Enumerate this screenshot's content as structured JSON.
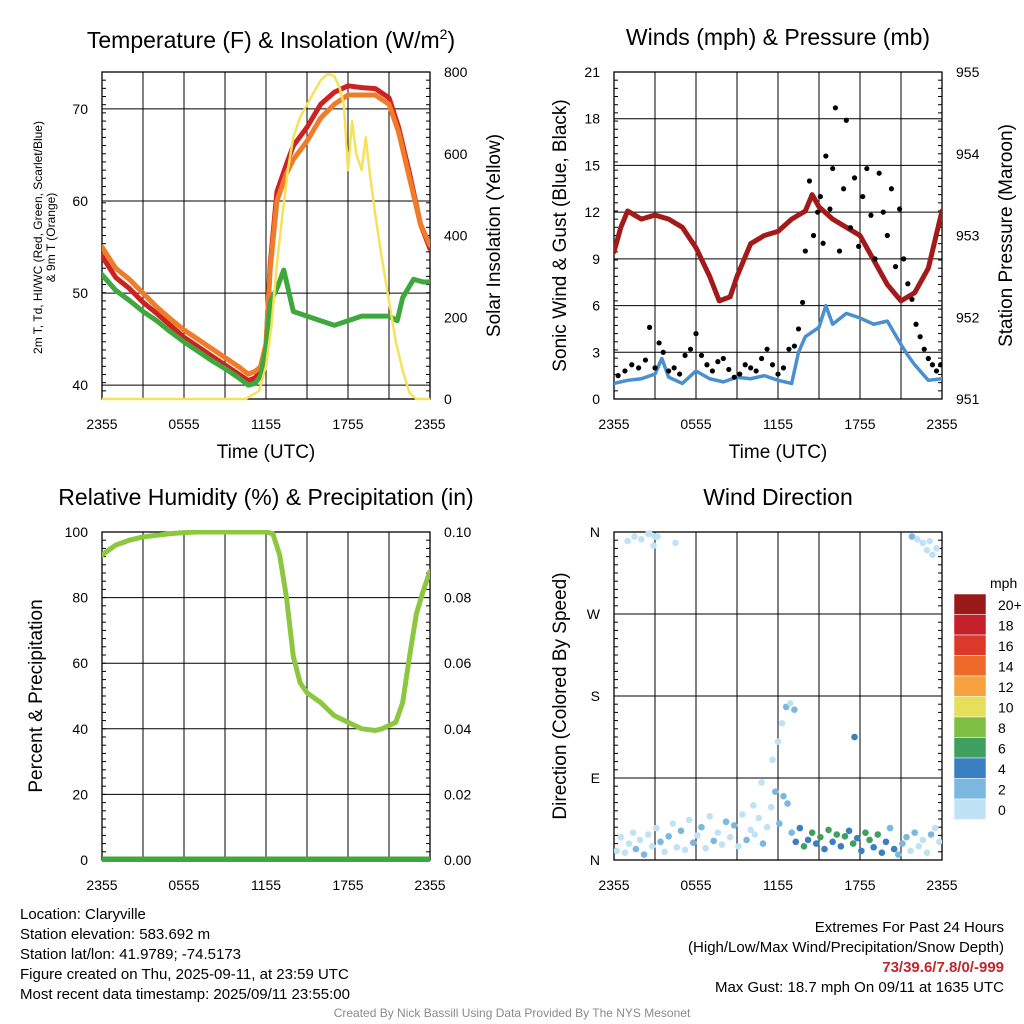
{
  "chart_data": [
    {
      "type": "line",
      "title": "Temperature (F) & Insolation (W/m²)",
      "xlabel": "Time (UTC)",
      "ylabel": "2m T, Td, HI/WC (Red, Green, Scarlet/Blue) & 9m T (Orange)",
      "ylabel_right": "Solar Insolation (Yellow)",
      "xticks": [
        "2355",
        "0555",
        "1155",
        "1755",
        "2355"
      ],
      "x_range": [
        0,
        24
      ],
      "ylim": [
        38.5,
        74
      ],
      "yticks": [
        40,
        50,
        60,
        70
      ],
      "ylim_right": [
        0,
        800
      ],
      "yticks_right": [
        0,
        200,
        400,
        600,
        800
      ],
      "grid": true,
      "series": [
        {
          "axis": "left",
          "color": "#cc2222",
          "x": [
            0,
            1,
            2,
            3,
            4,
            5,
            6,
            7,
            8,
            9,
            10,
            10.7,
            11.2,
            11.6,
            12,
            12.3,
            12.8,
            13.5,
            14,
            15,
            16,
            17,
            18,
            19,
            20,
            21,
            21.7,
            22.5,
            23.3,
            24
          ],
          "y": [
            54,
            51.7,
            50.5,
            49,
            47.8,
            46.5,
            45.2,
            44.2,
            43.2,
            42.2,
            41.2,
            40.5,
            40.8,
            41.5,
            44,
            53,
            61,
            64,
            66,
            68,
            70.5,
            71.8,
            72.5,
            72.3,
            72.2,
            71.2,
            68,
            63,
            57.5,
            54.8
          ]
        },
        {
          "axis": "left",
          "color": "#f07c2a",
          "x": [
            0,
            1,
            2,
            3,
            4,
            5,
            6,
            7,
            8,
            9,
            10,
            10.7,
            11.2,
            11.6,
            12,
            12.3,
            12.8,
            13.5,
            14,
            15,
            16,
            17,
            18,
            19,
            20,
            21,
            21.7,
            22.5,
            23.3,
            24
          ],
          "y": [
            55,
            52.7,
            51.5,
            50,
            48.5,
            47.2,
            46,
            45,
            44,
            43,
            42,
            41.2,
            41.5,
            42,
            44.5,
            52.5,
            60,
            63,
            64.5,
            66.5,
            69,
            70.5,
            71.5,
            71.5,
            71.5,
            70.5,
            67.5,
            62.5,
            57.5,
            55.2
          ]
        },
        {
          "axis": "left",
          "color": "#3ea83e",
          "x": [
            0,
            1,
            2,
            3,
            4,
            5,
            6,
            7,
            8,
            9,
            10,
            10.7,
            11.2,
            11.6,
            12,
            12.3,
            12.8,
            13.3,
            14,
            15,
            16,
            17,
            18,
            19,
            20,
            21,
            21.6,
            22,
            22.8,
            23.5,
            24
          ],
          "y": [
            52,
            50.3,
            49.2,
            48,
            47,
            45.8,
            44.7,
            43.7,
            42.7,
            41.8,
            40.8,
            40,
            40.2,
            41,
            44,
            49,
            50.5,
            52.5,
            48,
            47.5,
            47,
            46.5,
            47,
            47.5,
            47.5,
            47.5,
            47,
            49.5,
            51.5,
            51.2,
            51.2
          ]
        },
        {
          "axis": "right",
          "color": "#f5e25a",
          "x": [
            0,
            10.5,
            11.5,
            12,
            12.4,
            12.8,
            13.2,
            13.6,
            14,
            14.5,
            15,
            15.5,
            16,
            16.5,
            17,
            17.4,
            17.7,
            18,
            18.3,
            18.6,
            19,
            19.3,
            19.6,
            20,
            20.5,
            21,
            21.5,
            22,
            22.5,
            23,
            23.5,
            24
          ],
          "y": [
            0,
            0,
            20,
            80,
            180,
            330,
            450,
            560,
            640,
            690,
            720,
            750,
            780,
            795,
            790,
            760,
            720,
            560,
            680,
            600,
            560,
            640,
            550,
            450,
            340,
            240,
            140,
            70,
            15,
            0,
            0,
            0
          ]
        }
      ]
    },
    {
      "type": "line",
      "title": "Winds (mph) & Pressure (mb)",
      "xlabel": "Time (UTC)",
      "ylabel": "Sonic Wind & Gust (Blue, Black)",
      "ylabel_right": "Station Pressure (Maroon)",
      "xticks": [
        "2355",
        "0555",
        "1155",
        "1755",
        "2355"
      ],
      "x_range": [
        0,
        24
      ],
      "ylim": [
        0,
        21
      ],
      "yticks": [
        0,
        3,
        6,
        9,
        12,
        15,
        18,
        21
      ],
      "ylim_right": [
        951,
        955
      ],
      "yticks_right": [
        951,
        952,
        953,
        954,
        955
      ],
      "grid": true,
      "series": [
        {
          "axis": "right",
          "color": "#a31a1a",
          "x": [
            0,
            0.5,
            1,
            1.5,
            2,
            3,
            4,
            5,
            6,
            7,
            7.7,
            8.5,
            9,
            10,
            11,
            12,
            13,
            14,
            14.5,
            15,
            16,
            17,
            18,
            19,
            20,
            21,
            22,
            23,
            24
          ],
          "y": [
            952.8,
            953.1,
            953.3,
            953.25,
            953.2,
            953.25,
            953.2,
            953.1,
            952.85,
            952.5,
            952.2,
            952.25,
            952.5,
            952.9,
            953.0,
            953.05,
            953.2,
            953.3,
            953.5,
            953.35,
            953.2,
            953.1,
            953.0,
            952.7,
            952.4,
            952.2,
            952.3,
            952.6,
            953.3
          ]
        },
        {
          "axis": "left",
          "color": "#4a8fd0",
          "x": [
            0,
            1,
            2,
            3,
            3.5,
            4,
            5,
            6,
            7,
            8,
            9,
            10,
            11,
            12,
            13,
            13.5,
            14,
            15,
            15.5,
            16,
            17,
            18,
            19,
            20,
            21,
            21.5,
            22,
            23,
            24
          ],
          "y": [
            1.0,
            1.2,
            1.3,
            1.6,
            2.6,
            1.4,
            1.0,
            1.8,
            1.3,
            1.1,
            1.4,
            1.3,
            1.5,
            1.2,
            1.0,
            3.0,
            4.0,
            4.6,
            6.0,
            4.8,
            5.5,
            5.2,
            4.8,
            5.0,
            3.5,
            2.8,
            2.2,
            1.2,
            1.3
          ]
        },
        {
          "axis": "left",
          "color": "#000000",
          "kind": "scatter",
          "x": [
            0.3,
            0.8,
            1.3,
            1.8,
            2.3,
            2.6,
            3.0,
            3.3,
            3.6,
            4.0,
            4.4,
            4.8,
            5.2,
            5.6,
            6.0,
            6.4,
            6.8,
            7.2,
            7.6,
            8.0,
            8.4,
            8.8,
            9.2,
            9.6,
            10.0,
            10.4,
            10.8,
            11.2,
            11.6,
            12.0,
            12.4,
            12.8,
            13.2,
            13.5,
            13.8,
            14.0,
            14.3,
            14.6,
            14.9,
            15.1,
            15.3,
            15.5,
            15.8,
            16.0,
            16.2,
            16.5,
            16.8,
            17.0,
            17.3,
            17.6,
            17.9,
            18.2,
            18.5,
            18.8,
            19.1,
            19.4,
            19.7,
            20.0,
            20.3,
            20.6,
            20.9,
            21.2,
            21.5,
            21.8,
            22.1,
            22.4,
            22.7,
            23.0,
            23.3,
            23.6,
            23.9
          ],
          "y": [
            1.5,
            1.8,
            2.2,
            2.0,
            2.5,
            4.6,
            2.0,
            3.6,
            3.0,
            1.8,
            2.0,
            1.6,
            2.8,
            3.2,
            4.2,
            2.8,
            2.2,
            1.8,
            2.4,
            2.6,
            1.9,
            1.4,
            1.6,
            2.2,
            2.0,
            1.8,
            2.6,
            3.2,
            2.2,
            1.6,
            2.0,
            3.2,
            3.4,
            4.5,
            6.2,
            9.5,
            14.0,
            10.5,
            12.0,
            13.0,
            10.0,
            15.6,
            12.2,
            14.8,
            18.7,
            9.5,
            13.5,
            17.9,
            11.0,
            14.2,
            9.8,
            13.0,
            14.8,
            11.8,
            9.0,
            14.5,
            12.0,
            10.5,
            13.5,
            8.5,
            12.2,
            9.0,
            7.4,
            6.4,
            4.8,
            4.0,
            3.2,
            2.6,
            2.2,
            1.8,
            2.2
          ]
        }
      ]
    },
    {
      "type": "line",
      "title": "Relative Humidity (%) & Precipitation (in)",
      "xlabel": "",
      "ylabel": "Percent & Precipitation",
      "xticks": [
        "2355",
        "0555",
        "1155",
        "1755",
        "2355"
      ],
      "x_range": [
        0,
        24
      ],
      "ylim": [
        0,
        100
      ],
      "yticks": [
        0,
        20,
        40,
        60,
        80,
        100
      ],
      "ylim_right": [
        0,
        0.1
      ],
      "yticks_right": [
        "0.00",
        "0.02",
        "0.04",
        "0.06",
        "0.08",
        "0.10"
      ],
      "grid": true,
      "series": [
        {
          "axis": "left",
          "color": "#8dc63f",
          "x": [
            0,
            0.5,
            1,
            2,
            3,
            4,
            5,
            6,
            7,
            8,
            9,
            10,
            11,
            12,
            12.5,
            13,
            13.5,
            14,
            14.5,
            15,
            16,
            17,
            17.5,
            18,
            19,
            20,
            20.5,
            21,
            21.5,
            22,
            22.5,
            23,
            23.5,
            24
          ],
          "y": [
            93,
            94.5,
            96,
            97.5,
            98.5,
            99,
            99.5,
            99.8,
            100,
            100,
            100,
            100,
            100,
            100,
            99.5,
            93,
            80,
            62,
            54,
            51,
            48,
            44,
            43,
            42,
            40,
            39.5,
            40,
            41,
            42,
            48,
            62,
            75,
            82,
            88
          ]
        },
        {
          "axis": "right",
          "color": "#3ea83e",
          "x": [
            0,
            24
          ],
          "y": [
            0,
            0
          ]
        }
      ]
    },
    {
      "type": "scatter",
      "title": "Wind Direction",
      "xlabel": "",
      "ylabel": "Direction (Colored By Speed)",
      "xticks": [
        "2355",
        "0555",
        "1155",
        "1755",
        "2355"
      ],
      "x_range": [
        0,
        24
      ],
      "yticks": [
        "N",
        "E",
        "S",
        "W",
        "N"
      ],
      "ylim": [
        0,
        360
      ],
      "grid": true,
      "legend_title": "mph",
      "legend_labels": [
        "0",
        "2",
        "4",
        "6",
        "8",
        "10",
        "12",
        "14",
        "16",
        "18",
        "20+"
      ],
      "legend_colors": [
        "#bfe3f5",
        "#7cb7e0",
        "#3a7fc0",
        "#3f9f5f",
        "#7fbf44",
        "#e5df5a",
        "#f6a23f",
        "#ee6a2a",
        "#db3a2a",
        "#c4202a",
        "#9a1a1a"
      ],
      "points": {
        "x": [
          0.2,
          0.5,
          0.8,
          1.1,
          1.4,
          1.6,
          1.9,
          2.2,
          2.5,
          2.8,
          3.1,
          3.4,
          3.7,
          4.0,
          4.3,
          4.6,
          4.9,
          5.2,
          5.5,
          5.8,
          6.1,
          6.4,
          6.7,
          7.0,
          7.3,
          7.6,
          7.9,
          8.2,
          8.5,
          8.8,
          9.1,
          9.4,
          9.7,
          10.0,
          10.3,
          10.6,
          10.9,
          11.2,
          11.5,
          11.8,
          12.1,
          12.4,
          12.7,
          13.0,
          13.3,
          13.6,
          13.9,
          14.2,
          14.5,
          14.8,
          15.1,
          15.4,
          15.7,
          16.0,
          16.3,
          16.6,
          16.9,
          17.2,
          17.5,
          17.8,
          18.1,
          18.4,
          18.7,
          19.0,
          19.3,
          19.6,
          19.9,
          20.2,
          20.5,
          20.8,
          21.1,
          21.4,
          21.7,
          22.0,
          22.3,
          22.6,
          22.9,
          23.2,
          23.5,
          23.8,
          1.0,
          1.5,
          2.0,
          2.5,
          2.9,
          3.2,
          4.5,
          3.0,
          2.6,
          21.8,
          22.2,
          22.6,
          22.9,
          23.1,
          23.3,
          23.6,
          17.6,
          12.6,
          12.9,
          13.2,
          12.3,
          12.0,
          11.6,
          10.8,
          10.2
        ],
        "y": [
          10,
          25,
          8,
          18,
          30,
          12,
          22,
          6,
          28,
          15,
          35,
          20,
          9,
          26,
          40,
          14,
          32,
          11,
          44,
          19,
          27,
          36,
          13,
          48,
          21,
          30,
          17,
          42,
          25,
          38,
          15,
          50,
          22,
          33,
          28,
          46,
          18,
          36,
          58,
          75,
          40,
          70,
          62,
          30,
          20,
          35,
          15,
          22,
          30,
          18,
          25,
          12,
          33,
          20,
          28,
          15,
          26,
          32,
          18,
          24,
          10,
          30,
          22,
          14,
          28,
          8,
          20,
          35,
          12,
          6,
          18,
          25,
          10,
          30,
          15,
          22,
          8,
          28,
          35,
          20,
          350,
          355,
          352,
          358,
          345,
          355,
          348,
          355,
          358,
          355,
          352,
          348,
          340,
          350,
          335,
          342,
          135,
          168,
          172,
          165,
          150,
          130,
          110,
          85,
          60
        ],
        "speed": [
          0.5,
          0.8,
          1.2,
          0.6,
          1.5,
          2.2,
          1.0,
          2.8,
          1.8,
          0.7,
          1.3,
          2.0,
          1.1,
          3.5,
          1.6,
          0.9,
          2.5,
          1.4,
          1.7,
          2.3,
          1.1,
          3.0,
          0.8,
          1.9,
          2.6,
          1.2,
          1.5,
          2.1,
          0.9,
          3.2,
          1.6,
          1.3,
          2.4,
          1.0,
          0.8,
          1.7,
          2.2,
          1.4,
          1.9,
          2.6,
          2.0,
          2.9,
          2.5,
          3.8,
          4.5,
          5.2,
          6.4,
          4.2,
          6.8,
          5.5,
          7.2,
          4.8,
          6.2,
          5.6,
          7.0,
          4.6,
          6.6,
          5.0,
          6.9,
          5.3,
          4.4,
          7.1,
          6.0,
          4.9,
          6.7,
          4.2,
          5.8,
          3.6,
          4.3,
          2.4,
          3.9,
          2.7,
          1.6,
          2.1,
          1.2,
          1.8,
          0.9,
          2.3,
          1.4,
          1.1,
          0.6,
          0.7,
          1.0,
          0.5,
          0.8,
          0.9,
          1.2,
          0.6,
          0.4,
          2.6,
          1.4,
          1.0,
          0.8,
          1.1,
          0.6,
          0.9,
          4.6,
          2.2,
          1.8,
          2.4,
          1.9,
          1.5,
          1.2,
          0.9,
          1.6
        ]
      }
    }
  ],
  "info": {
    "location": "Location: Claryville",
    "elevation": "Station elevation: 583.692 m",
    "latlon": "Station lat/lon: 41.9789; -74.5173",
    "created": "Figure created on Thu, 2025-09-11, at 23:59 UTC",
    "recent": "Most recent data timestamp: 2025/09/11 23:55:00"
  },
  "extremes": {
    "title": "Extremes For Past 24 Hours",
    "subtitle": "(High/Low/Max Wind/Precipitation/Snow Depth)",
    "values": "73/39.6/7.8/0/-999",
    "max_gust": "Max Gust: 18.7 mph On 09/11 at 1635 UTC"
  },
  "credit": "Created By Nick Bassill Using Data Provided By The NYS Mesonet"
}
